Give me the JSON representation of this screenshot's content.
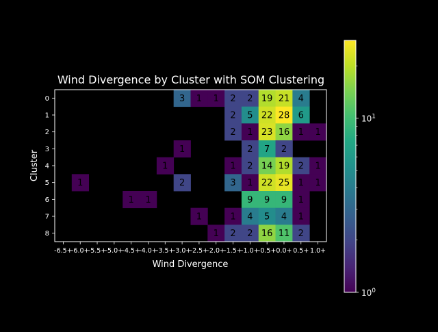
{
  "chart_data": {
    "type": "heatmap",
    "title": "Wind Divergence by Cluster with SOM Clustering",
    "xlabel": "Wind Divergence",
    "ylabel": "Cluster",
    "x_ticks": [
      "-6.5+",
      "-6.0+",
      "-5.5+",
      "-5.0+",
      "-4.5+",
      "-4.0+",
      "-3.5+",
      "-3.0+",
      "-2.5+",
      "-2.0+",
      "-1.5+",
      "-1.0+",
      "-0.5+",
      "0.0+",
      "0.5+",
      "1.0+"
    ],
    "y_ticks": [
      "0",
      "1",
      "2",
      "3",
      "4",
      "5",
      "6",
      "7",
      "8"
    ],
    "cells": [
      {
        "cluster": 0,
        "bin": "-3.0+",
        "value": 3
      },
      {
        "cluster": 0,
        "bin": "-2.5+",
        "value": 1
      },
      {
        "cluster": 0,
        "bin": "-2.0+",
        "value": 1
      },
      {
        "cluster": 0,
        "bin": "-1.5+",
        "value": 2
      },
      {
        "cluster": 0,
        "bin": "-1.0+",
        "value": 2
      },
      {
        "cluster": 0,
        "bin": "-0.5+",
        "value": 19
      },
      {
        "cluster": 0,
        "bin": "0.0+",
        "value": 21
      },
      {
        "cluster": 0,
        "bin": "0.5+",
        "value": 4
      },
      {
        "cluster": 1,
        "bin": "-1.5+",
        "value": 2
      },
      {
        "cluster": 1,
        "bin": "-1.0+",
        "value": 5
      },
      {
        "cluster": 1,
        "bin": "-0.5+",
        "value": 22
      },
      {
        "cluster": 1,
        "bin": "0.0+",
        "value": 28
      },
      {
        "cluster": 1,
        "bin": "0.5+",
        "value": 6
      },
      {
        "cluster": 2,
        "bin": "-1.5+",
        "value": 2
      },
      {
        "cluster": 2,
        "bin": "-1.0+",
        "value": 1
      },
      {
        "cluster": 2,
        "bin": "-0.5+",
        "value": 23
      },
      {
        "cluster": 2,
        "bin": "0.0+",
        "value": 16
      },
      {
        "cluster": 2,
        "bin": "0.5+",
        "value": 1
      },
      {
        "cluster": 2,
        "bin": "1.0+",
        "value": 1
      },
      {
        "cluster": 3,
        "bin": "-3.0+",
        "value": 1
      },
      {
        "cluster": 3,
        "bin": "-1.0+",
        "value": 2
      },
      {
        "cluster": 3,
        "bin": "-0.5+",
        "value": 7
      },
      {
        "cluster": 3,
        "bin": "0.0+",
        "value": 2
      },
      {
        "cluster": 4,
        "bin": "-3.5+",
        "value": 1
      },
      {
        "cluster": 4,
        "bin": "-1.5+",
        "value": 1
      },
      {
        "cluster": 4,
        "bin": "-1.0+",
        "value": 2
      },
      {
        "cluster": 4,
        "bin": "-0.5+",
        "value": 14
      },
      {
        "cluster": 4,
        "bin": "0.0+",
        "value": 19
      },
      {
        "cluster": 4,
        "bin": "0.5+",
        "value": 2
      },
      {
        "cluster": 4,
        "bin": "1.0+",
        "value": 1
      },
      {
        "cluster": 5,
        "bin": "-6.0+",
        "value": 1
      },
      {
        "cluster": 5,
        "bin": "-3.0+",
        "value": 2
      },
      {
        "cluster": 5,
        "bin": "-1.5+",
        "value": 3
      },
      {
        "cluster": 5,
        "bin": "-1.0+",
        "value": 1
      },
      {
        "cluster": 5,
        "bin": "-0.5+",
        "value": 22
      },
      {
        "cluster": 5,
        "bin": "0.0+",
        "value": 25
      },
      {
        "cluster": 5,
        "bin": "0.5+",
        "value": 1
      },
      {
        "cluster": 5,
        "bin": "1.0+",
        "value": 1
      },
      {
        "cluster": 6,
        "bin": "-4.5+",
        "value": 1
      },
      {
        "cluster": 6,
        "bin": "-4.0+",
        "value": 1
      },
      {
        "cluster": 6,
        "bin": "-1.0+",
        "value": 9
      },
      {
        "cluster": 6,
        "bin": "-0.5+",
        "value": 9
      },
      {
        "cluster": 6,
        "bin": "0.0+",
        "value": 9
      },
      {
        "cluster": 6,
        "bin": "0.5+",
        "value": 1
      },
      {
        "cluster": 7,
        "bin": "-2.5+",
        "value": 1
      },
      {
        "cluster": 7,
        "bin": "-1.5+",
        "value": 1
      },
      {
        "cluster": 7,
        "bin": "-1.0+",
        "value": 4
      },
      {
        "cluster": 7,
        "bin": "-0.5+",
        "value": 5
      },
      {
        "cluster": 7,
        "bin": "0.0+",
        "value": 4
      },
      {
        "cluster": 7,
        "bin": "0.5+",
        "value": 1
      },
      {
        "cluster": 8,
        "bin": "-2.0+",
        "value": 1
      },
      {
        "cluster": 8,
        "bin": "-1.5+",
        "value": 2
      },
      {
        "cluster": 8,
        "bin": "-1.0+",
        "value": 2
      },
      {
        "cluster": 8,
        "bin": "-0.5+",
        "value": 16
      },
      {
        "cluster": 8,
        "bin": "0.0+",
        "value": 11
      },
      {
        "cluster": 8,
        "bin": "0.5+",
        "value": 2
      }
    ],
    "colorbar": {
      "colormap": "viridis",
      "scale": "log",
      "range": [
        1,
        28
      ],
      "tick_labels": [
        {
          "value": 1,
          "base": "10",
          "exp": "0"
        },
        {
          "value": 10,
          "base": "10",
          "exp": "1"
        }
      ]
    },
    "background_color": "#000000",
    "foreground_color": "#ffffff",
    "grid": false
  }
}
